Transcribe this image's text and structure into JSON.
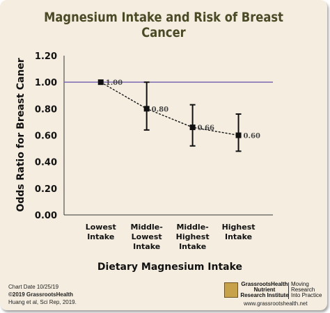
{
  "chart_data": {
    "type": "line",
    "title": "Magnesium Intake and Risk of Breast Cancer",
    "xlabel": "Dietary Magnesium Intake",
    "ylabel": "Odds Ratio for Breast Caner",
    "categories": [
      [
        "Lowest",
        "Intake"
      ],
      [
        "Middle-",
        "Lowest",
        "Intake"
      ],
      [
        "Middle-",
        "Highest",
        "Intake"
      ],
      [
        "Highest",
        "Intake"
      ]
    ],
    "values": [
      1.0,
      0.8,
      0.66,
      0.6
    ],
    "data_labels": [
      "1.00",
      "0.80",
      "0.66",
      "0.60"
    ],
    "error_low": [
      null,
      0.64,
      0.52,
      0.48
    ],
    "error_high": [
      null,
      1.0,
      0.83,
      0.76
    ],
    "reference_line": 1.0,
    "ylim": [
      0,
      1.2
    ],
    "yticks": [
      "0.00",
      "0.20",
      "0.40",
      "0.60",
      "0.80",
      "1.00",
      "1.20"
    ],
    "grid": false,
    "colors": {
      "reference_line": "#7b68b5",
      "markers": "#111111",
      "background": "#f4ede0",
      "title": "#4a4a26"
    }
  },
  "footer": {
    "chart_date": "Chart Date 10/25/19",
    "copyright": "©2019 GrassrootsHealth",
    "citation": "Huang et al, Sci Rep, 2019.",
    "org_line1": "GrassrootsHealth",
    "org_line2": "Nutrient",
    "org_line3": "Research Institute",
    "tag_line1": "Moving",
    "tag_line2": "Research",
    "tag_line3": "Into Practice",
    "website": "www.grassrootshealth.net"
  }
}
